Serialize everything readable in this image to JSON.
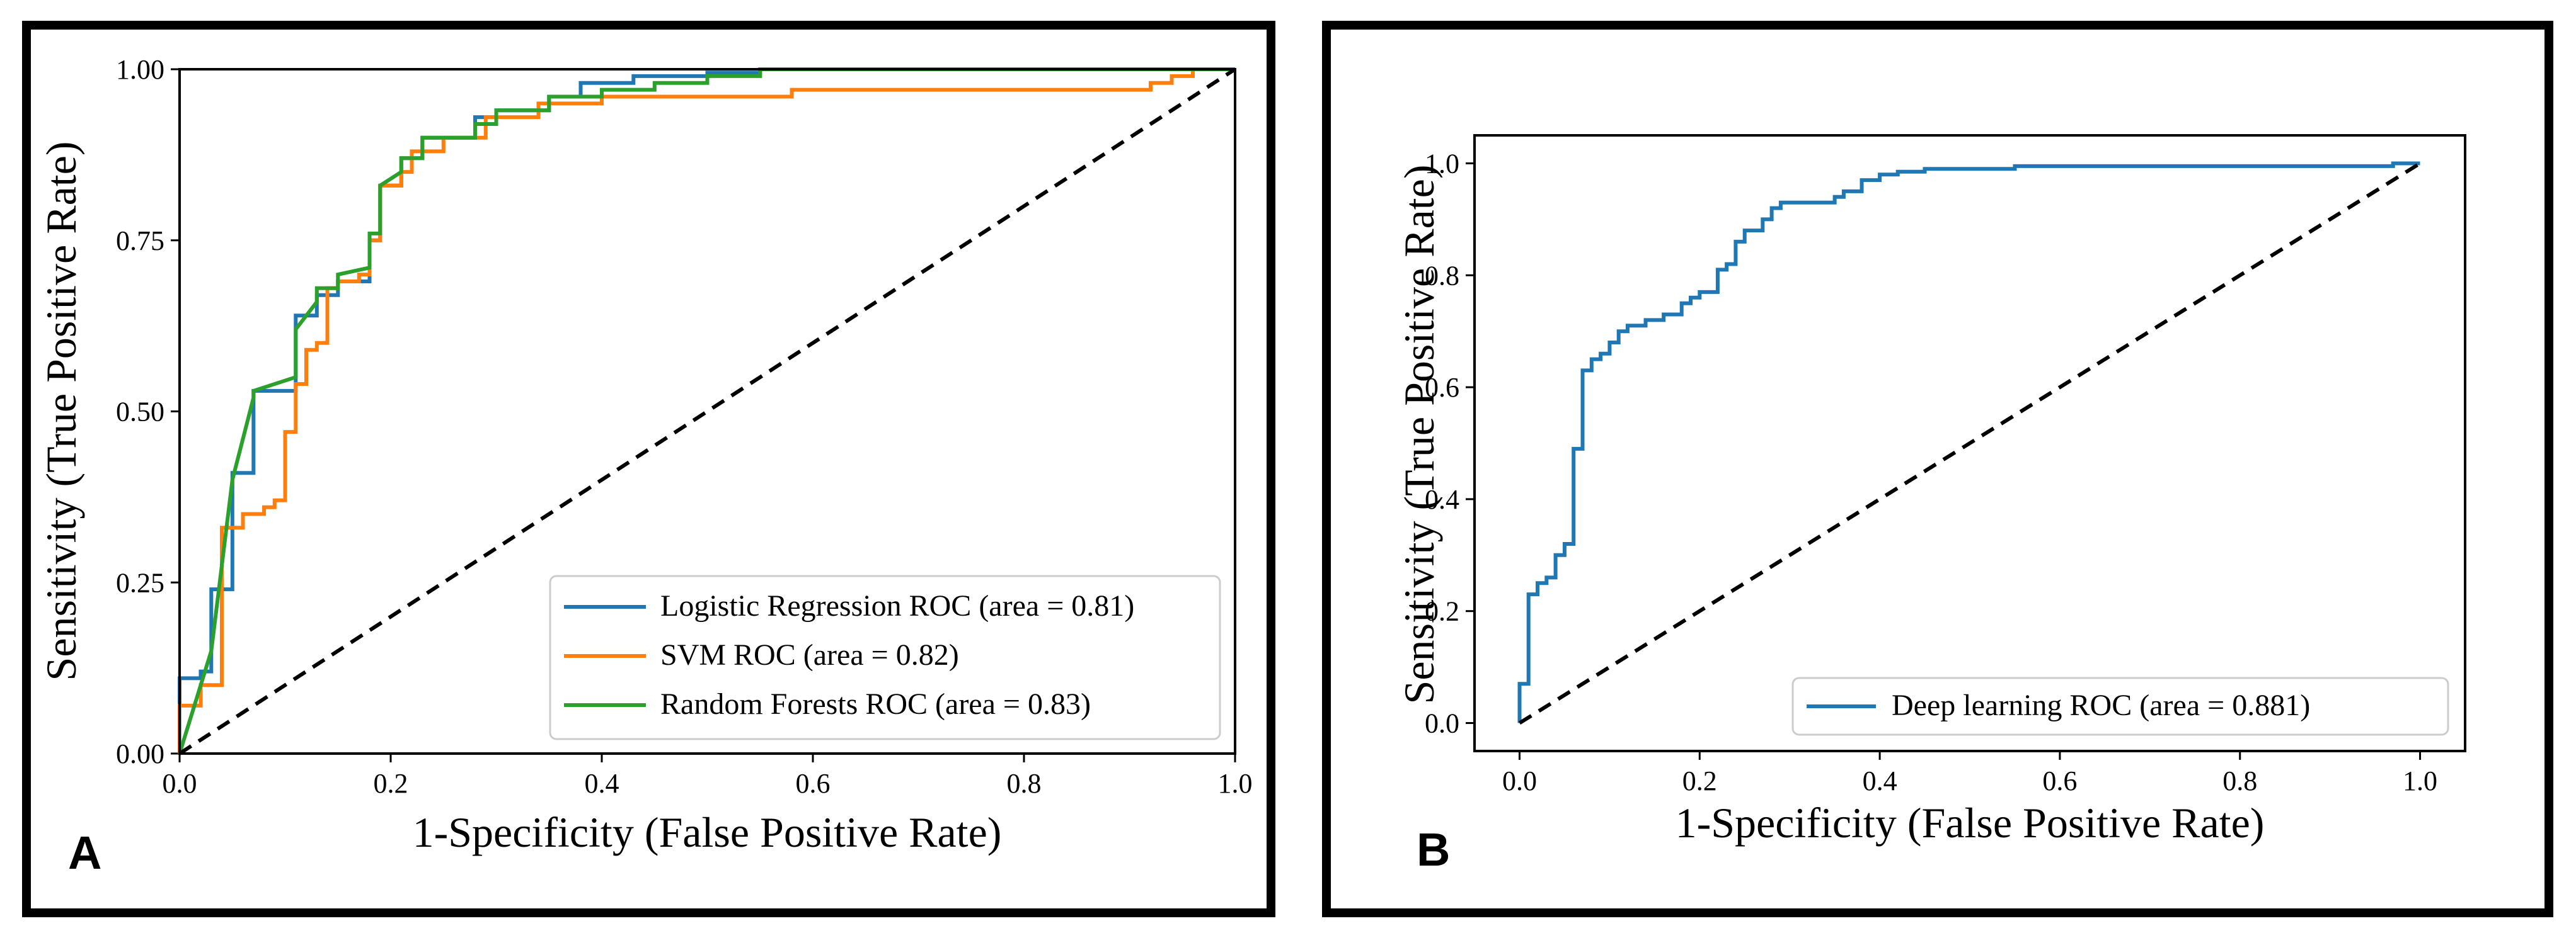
{
  "colors": {
    "logistic": "#1f77b4",
    "svm": "#ff7f0e",
    "forest": "#2ca02c",
    "deep": "#1f77b4",
    "diagonal": "#000000"
  },
  "chart_data": [
    {
      "type": "line",
      "panel_label": "A",
      "xlabel": "1-Specificity (False Positive Rate)",
      "ylabel": "Sensitivity (True Positive Rate)",
      "xlim": [
        0.0,
        1.0
      ],
      "ylim": [
        0.0,
        1.0
      ],
      "x_ticks": [
        "0.0",
        "0.2",
        "0.4",
        "0.6",
        "0.8",
        "1.0"
      ],
      "x_tick_values": [
        0,
        0.2,
        0.4,
        0.6,
        0.8,
        1.0
      ],
      "y_ticks": [
        "0.00",
        "0.25",
        "0.50",
        "0.75",
        "1.00"
      ],
      "y_tick_values": [
        0,
        0.25,
        0.5,
        0.75,
        1.0
      ],
      "legend_position": "lower-right",
      "series": [
        {
          "name": "Logistic Regression ROC (area = 0.81)",
          "color_key": "logistic",
          "x": [
            0,
            0,
            0.02,
            0.02,
            0.03,
            0.03,
            0.05,
            0.05,
            0.07,
            0.07,
            0.11,
            0.11,
            0.13,
            0.13,
            0.15,
            0.15,
            0.18,
            0.18,
            0.19,
            0.19,
            0.21,
            0.21,
            0.23,
            0.23,
            0.28,
            0.28,
            0.3,
            0.3,
            0.35,
            0.35,
            0.38,
            0.38,
            0.43,
            0.43,
            0.5,
            0.5,
            0.55,
            0.55,
            1.0
          ],
          "y": [
            0,
            0.11,
            0.11,
            0.12,
            0.12,
            0.24,
            0.24,
            0.41,
            0.41,
            0.53,
            0.53,
            0.64,
            0.64,
            0.67,
            0.67,
            0.69,
            0.69,
            0.75,
            0.75,
            0.83,
            0.83,
            0.87,
            0.87,
            0.9,
            0.9,
            0.93,
            0.93,
            0.94,
            0.94,
            0.96,
            0.96,
            0.98,
            0.98,
            0.99,
            0.99,
            0.995,
            0.995,
            1.0,
            1.0
          ]
        },
        {
          "name": "SVM ROC (area = 0.82)",
          "color_key": "svm",
          "x": [
            0,
            0,
            0.02,
            0.02,
            0.04,
            0.04,
            0.06,
            0.06,
            0.08,
            0.08,
            0.09,
            0.09,
            0.1,
            0.1,
            0.11,
            0.11,
            0.12,
            0.12,
            0.13,
            0.13,
            0.14,
            0.14,
            0.15,
            0.15,
            0.17,
            0.17,
            0.18,
            0.18,
            0.19,
            0.19,
            0.21,
            0.21,
            0.22,
            0.22,
            0.25,
            0.25,
            0.29,
            0.29,
            0.34,
            0.34,
            0.4,
            0.4,
            0.58,
            0.58,
            0.92,
            0.92,
            0.94,
            0.94,
            0.96,
            0.96,
            1.0
          ],
          "y": [
            0,
            0.07,
            0.07,
            0.1,
            0.1,
            0.33,
            0.33,
            0.35,
            0.35,
            0.36,
            0.36,
            0.37,
            0.37,
            0.47,
            0.47,
            0.54,
            0.54,
            0.59,
            0.59,
            0.6,
            0.6,
            0.68,
            0.68,
            0.69,
            0.69,
            0.7,
            0.7,
            0.75,
            0.75,
            0.83,
            0.83,
            0.85,
            0.85,
            0.88,
            0.88,
            0.9,
            0.9,
            0.93,
            0.93,
            0.95,
            0.95,
            0.96,
            0.96,
            0.97,
            0.97,
            0.98,
            0.98,
            0.99,
            0.99,
            1.0,
            1.0
          ]
        },
        {
          "name": "Random Forests ROC (area = 0.83)",
          "color_key": "forest",
          "x": [
            0,
            0.03,
            0.05,
            0.07,
            0.07,
            0.11,
            0.11,
            0.13,
            0.13,
            0.15,
            0.15,
            0.18,
            0.18,
            0.19,
            0.19,
            0.21,
            0.21,
            0.23,
            0.23,
            0.28,
            0.28,
            0.3,
            0.3,
            0.35,
            0.35,
            0.4,
            0.4,
            0.45,
            0.45,
            0.5,
            0.5,
            0.55,
            0.55,
            1.0
          ],
          "y": [
            0,
            0.15,
            0.4,
            0.52,
            0.53,
            0.55,
            0.62,
            0.66,
            0.68,
            0.68,
            0.7,
            0.71,
            0.76,
            0.76,
            0.83,
            0.85,
            0.87,
            0.87,
            0.9,
            0.9,
            0.92,
            0.92,
            0.94,
            0.94,
            0.96,
            0.96,
            0.97,
            0.97,
            0.98,
            0.98,
            0.99,
            0.99,
            1.0,
            1.0
          ]
        },
        {
          "name": "diagonal",
          "color_key": "diagonal",
          "dashed": true,
          "x": [
            0,
            1
          ],
          "y": [
            0,
            1
          ]
        }
      ]
    },
    {
      "type": "line",
      "panel_label": "B",
      "xlabel": "1-Specificity (False Positive Rate)",
      "ylabel": "Sensitivity (True Positive Rate)",
      "xlim": [
        -0.05,
        1.05
      ],
      "ylim": [
        -0.05,
        1.05
      ],
      "x_ticks": [
        "0.0",
        "0.2",
        "0.4",
        "0.6",
        "0.8",
        "1.0"
      ],
      "x_tick_values": [
        0,
        0.2,
        0.4,
        0.6,
        0.8,
        1.0
      ],
      "y_ticks": [
        "0.0",
        "0.2",
        "0.4",
        "0.6",
        "0.8",
        "1.0"
      ],
      "y_tick_values": [
        0,
        0.2,
        0.4,
        0.6,
        0.8,
        1.0
      ],
      "legend_position": "lower-right",
      "series": [
        {
          "name": "Deep learning ROC (area = 0.881)",
          "color_key": "deep",
          "x": [
            0,
            0,
            0.01,
            0.01,
            0.02,
            0.02,
            0.03,
            0.03,
            0.04,
            0.04,
            0.05,
            0.05,
            0.06,
            0.06,
            0.07,
            0.07,
            0.08,
            0.08,
            0.09,
            0.09,
            0.1,
            0.1,
            0.11,
            0.11,
            0.12,
            0.12,
            0.14,
            0.14,
            0.16,
            0.16,
            0.18,
            0.18,
            0.19,
            0.19,
            0.2,
            0.2,
            0.22,
            0.22,
            0.23,
            0.23,
            0.24,
            0.24,
            0.25,
            0.25,
            0.27,
            0.27,
            0.28,
            0.28,
            0.29,
            0.29,
            0.35,
            0.35,
            0.36,
            0.36,
            0.38,
            0.38,
            0.4,
            0.4,
            0.42,
            0.42,
            0.45,
            0.45,
            0.55,
            0.55,
            0.97,
            0.97,
            1.0
          ],
          "y": [
            0,
            0.07,
            0.07,
            0.23,
            0.23,
            0.25,
            0.25,
            0.26,
            0.26,
            0.3,
            0.3,
            0.32,
            0.32,
            0.49,
            0.49,
            0.63,
            0.63,
            0.65,
            0.65,
            0.66,
            0.66,
            0.68,
            0.68,
            0.7,
            0.7,
            0.71,
            0.71,
            0.72,
            0.72,
            0.73,
            0.73,
            0.75,
            0.75,
            0.76,
            0.76,
            0.77,
            0.77,
            0.81,
            0.81,
            0.82,
            0.82,
            0.86,
            0.86,
            0.88,
            0.88,
            0.9,
            0.9,
            0.92,
            0.92,
            0.93,
            0.93,
            0.94,
            0.94,
            0.95,
            0.95,
            0.97,
            0.97,
            0.98,
            0.98,
            0.985,
            0.985,
            0.99,
            0.99,
            0.995,
            0.995,
            1.0,
            1.0
          ]
        },
        {
          "name": "diagonal",
          "color_key": "diagonal",
          "dashed": true,
          "x": [
            0,
            1
          ],
          "y": [
            0,
            1
          ]
        }
      ]
    }
  ]
}
